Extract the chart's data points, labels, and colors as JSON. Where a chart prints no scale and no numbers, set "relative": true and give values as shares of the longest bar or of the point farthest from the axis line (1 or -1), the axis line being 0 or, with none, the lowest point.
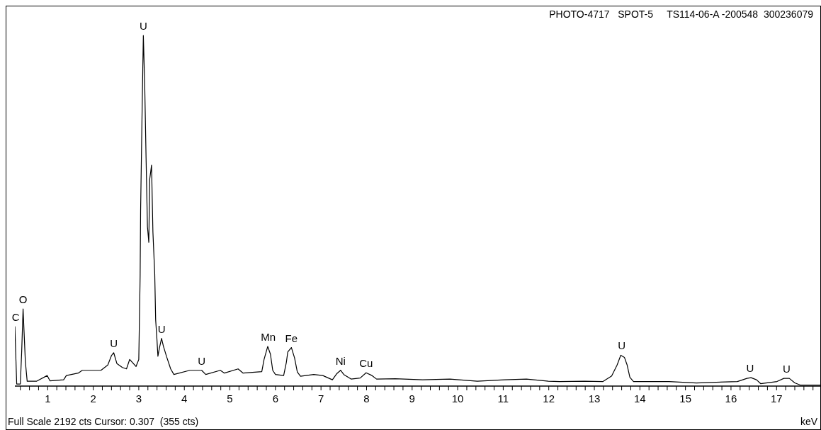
{
  "chart_data": {
    "type": "line",
    "title": "PHOTO-4717   SPOT-5     TS114-06-A -200548  300236079",
    "xlabel": "keV",
    "relative": true,
    "annotations": [
      "Full Scale 2192 cts Cursor: 0.307  (355 cts)",
      {
        "text": "C",
        "x": 0.3,
        "y": 0.17
      },
      {
        "text": "O",
        "x": 0.46,
        "y": 0.22
      },
      {
        "text": "U",
        "x": 2.45,
        "y": 0.095
      },
      {
        "text": "U",
        "x": 3.1,
        "y": 1
      },
      {
        "text": "U",
        "x": 3.5,
        "y": 0.136
      },
      {
        "text": "U",
        "x": 4.38,
        "y": 0.045
      },
      {
        "text": "Mn",
        "x": 5.84,
        "y": 0.113
      },
      {
        "text": "Fe",
        "x": 6.35,
        "y": 0.11
      },
      {
        "text": "Ni",
        "x": 7.43,
        "y": 0.045
      },
      {
        "text": "Cu",
        "x": 7.99,
        "y": 0.038
      },
      {
        "text": "U",
        "x": 13.6,
        "y": 0.088
      },
      {
        "text": "U",
        "x": 16.42,
        "y": 0.024
      },
      {
        "text": "U",
        "x": 17.22,
        "y": 0.022
      }
    ],
    "xlim": [
      0.28,
      17.96
    ],
    "xticks": [
      {
        "value": 0.4,
        "label": null
      },
      {
        "value": 0.6,
        "label": null
      },
      {
        "value": 0.8,
        "label": null
      },
      1,
      {
        "value": 1.2,
        "label": null
      },
      {
        "value": 1.4,
        "label": null
      },
      {
        "value": 1.6,
        "label": null
      },
      {
        "value": 1.8,
        "label": null
      },
      2,
      {
        "value": 2.2,
        "label": null
      },
      {
        "value": 2.4,
        "label": null
      },
      {
        "value": 2.6,
        "label": null
      },
      {
        "value": 2.8,
        "label": null
      },
      3,
      {
        "value": 3.2,
        "label": null
      },
      {
        "value": 3.4,
        "label": null
      },
      {
        "value": 3.6,
        "label": null
      },
      {
        "value": 3.8,
        "label": null
      },
      4,
      {
        "value": 4.2,
        "label": null
      },
      {
        "value": 4.4,
        "label": null
      },
      {
        "value": 4.6,
        "label": null
      },
      {
        "value": 4.8,
        "label": null
      },
      5,
      {
        "value": 5.2,
        "label": null
      },
      {
        "value": 5.4,
        "label": null
      },
      {
        "value": 5.6,
        "label": null
      },
      {
        "value": 5.8,
        "label": null
      },
      6,
      {
        "value": 6.2,
        "label": null
      },
      {
        "value": 6.4,
        "label": null
      },
      {
        "value": 6.6,
        "label": null
      },
      {
        "value": 6.8,
        "label": null
      },
      7,
      {
        "value": 7.2,
        "label": null
      },
      {
        "value": 7.4,
        "label": null
      },
      {
        "value": 7.6,
        "label": null
      },
      {
        "value": 7.8,
        "label": null
      },
      8,
      {
        "value": 8.2,
        "label": null
      },
      {
        "value": 8.4,
        "label": null
      },
      {
        "value": 8.6,
        "label": null
      },
      {
        "value": 8.8,
        "label": null
      },
      9,
      {
        "value": 9.2,
        "label": null
      },
      {
        "value": 9.4,
        "label": null
      },
      {
        "value": 9.6,
        "label": null
      },
      {
        "value": 9.8,
        "label": null
      },
      10,
      {
        "value": 10.2,
        "label": null
      },
      {
        "value": 10.4,
        "label": null
      },
      {
        "value": 10.6,
        "label": null
      },
      {
        "value": 10.8,
        "label": null
      },
      11,
      {
        "value": 11.2,
        "label": null
      },
      {
        "value": 11.4,
        "label": null
      },
      {
        "value": 11.6,
        "label": null
      },
      {
        "value": 11.8,
        "label": null
      },
      12,
      {
        "value": 12.2,
        "label": null
      },
      {
        "value": 12.4,
        "label": null
      },
      {
        "value": 12.6,
        "label": null
      },
      {
        "value": 12.8,
        "label": null
      },
      13,
      {
        "value": 13.2,
        "label": null
      },
      {
        "value": 13.4,
        "label": null
      },
      {
        "value": 13.6,
        "label": null
      },
      {
        "value": 13.8,
        "label": null
      },
      14,
      {
        "value": 14.2,
        "label": null
      },
      {
        "value": 14.4,
        "label": null
      },
      {
        "value": 14.6,
        "label": null
      },
      {
        "value": 14.8,
        "label": null
      },
      15,
      {
        "value": 15.2,
        "label": null
      },
      {
        "value": 15.4,
        "label": null
      },
      {
        "value": 15.6,
        "label": null
      },
      {
        "value": 15.8,
        "label": null
      },
      16,
      {
        "value": 16.2,
        "label": null
      },
      {
        "value": 16.4,
        "label": null
      },
      {
        "value": 16.6,
        "label": null
      },
      {
        "value": 16.8,
        "label": null
      },
      17,
      {
        "value": 17.2,
        "label": null
      },
      {
        "value": 17.4,
        "label": null
      },
      {
        "value": 17.6,
        "label": null
      },
      {
        "value": 17.8,
        "label": null
      }
    ],
    "x": [
      0.28,
      0.32,
      0.4,
      0.43,
      0.46,
      0.51,
      0.55,
      0.76,
      0.99,
      1.05,
      1.35,
      1.41,
      1.67,
      1.76,
      2.17,
      2.32,
      2.4,
      2.45,
      2.52,
      2.64,
      2.73,
      2.8,
      2.94,
      3.0,
      3.03,
      3.04,
      3.07,
      3.1,
      3.13,
      3.16,
      3.19,
      3.22,
      3.24,
      3.28,
      3.31,
      3.35,
      3.37,
      3.4,
      3.42,
      3.45,
      3.5,
      3.54,
      3.61,
      3.7,
      3.77,
      4.12,
      4.38,
      4.47,
      4.79,
      4.88,
      5.18,
      5.29,
      5.7,
      5.75,
      5.83,
      5.89,
      5.94,
      6.0,
      6.18,
      6.24,
      6.27,
      6.35,
      6.42,
      6.48,
      6.55,
      6.84,
      7.04,
      7.25,
      7.35,
      7.43,
      7.5,
      7.66,
      7.86,
      7.99,
      8.12,
      8.22,
      8.63,
      9.23,
      9.83,
      10.43,
      11.03,
      11.51,
      11.99,
      12.24,
      12.78,
      13.19,
      13.38,
      13.5,
      13.58,
      13.66,
      13.72,
      13.78,
      13.86,
      14.64,
      15.24,
      16.14,
      16.35,
      16.44,
      16.56,
      16.65,
      17.01,
      17.16,
      17.28,
      17.4,
      17.52,
      17.96
    ],
    "values": [
      0.17,
      0.006,
      0.006,
      0.1,
      0.22,
      0.07,
      0.014,
      0.014,
      0.03,
      0.015,
      0.018,
      0.03,
      0.037,
      0.045,
      0.045,
      0.06,
      0.087,
      0.095,
      0.064,
      0.053,
      0.049,
      0.076,
      0.056,
      0.076,
      0.316,
      0.5,
      0.76,
      1,
      0.86,
      0.65,
      0.455,
      0.41,
      0.59,
      0.63,
      0.44,
      0.32,
      0.19,
      0.13,
      0.085,
      0.107,
      0.136,
      0.114,
      0.084,
      0.049,
      0.033,
      0.045,
      0.045,
      0.033,
      0.045,
      0.037,
      0.049,
      0.037,
      0.041,
      0.076,
      0.113,
      0.091,
      0.045,
      0.033,
      0.03,
      0.068,
      0.097,
      0.11,
      0.08,
      0.04,
      0.028,
      0.033,
      0.03,
      0.018,
      0.036,
      0.045,
      0.033,
      0.02,
      0.023,
      0.038,
      0.03,
      0.02,
      0.021,
      0.018,
      0.02,
      0.014,
      0.018,
      0.02,
      0.014,
      0.013,
      0.014,
      0.013,
      0.029,
      0.06,
      0.088,
      0.082,
      0.06,
      0.025,
      0.013,
      0.013,
      0.009,
      0.013,
      0.022,
      0.024,
      0.018,
      0.007,
      0.013,
      0.022,
      0.022,
      0.009,
      0.003,
      0.003
    ],
    "color": "#000000"
  }
}
